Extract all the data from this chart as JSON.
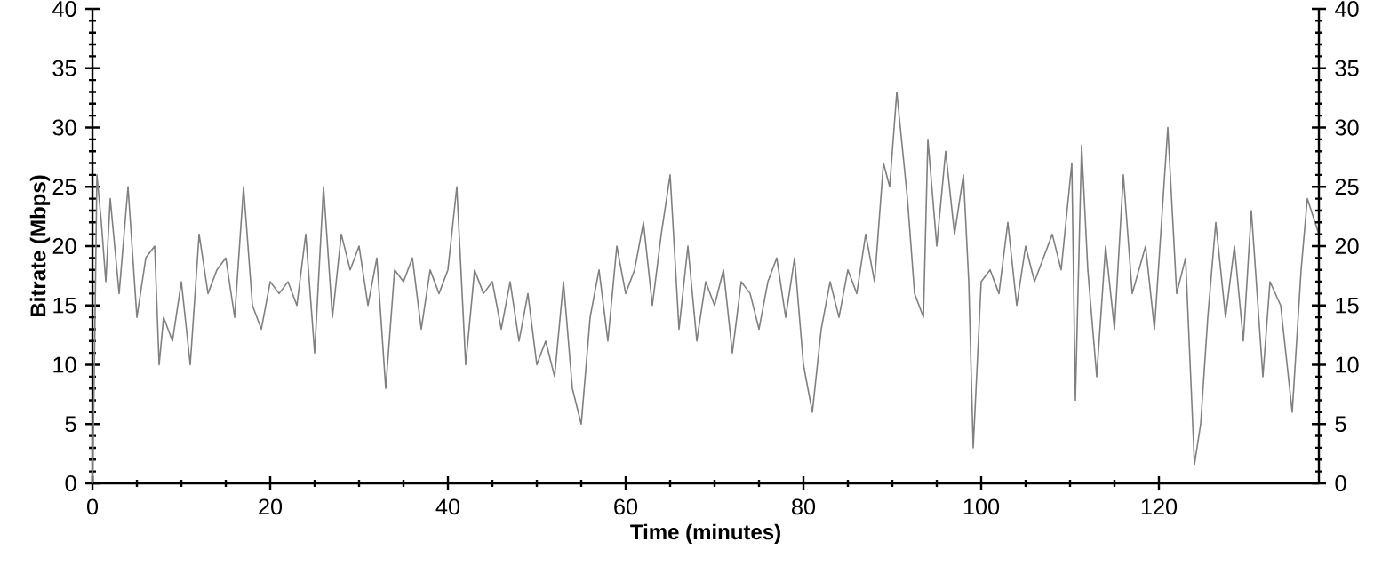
{
  "chart_data": {
    "type": "line",
    "xlabel": "Time (minutes)",
    "ylabel": "Bitrate (Mbps)",
    "xlim": [
      0,
      138
    ],
    "xticks": [
      0,
      20,
      40,
      60,
      80,
      100,
      120
    ],
    "ylim": [
      0,
      40
    ],
    "yticks": [
      0,
      5,
      10,
      15,
      20,
      25,
      30,
      35,
      40
    ],
    "y2lim": [
      0,
      40
    ],
    "y2ticks": [
      0,
      5,
      10,
      15,
      20,
      25,
      30,
      35,
      40
    ],
    "grid": false,
    "series": [
      {
        "color": "#808080",
        "x": [
          0,
          0.2,
          0.5,
          1,
          1.5,
          2,
          3,
          4,
          5,
          6,
          7,
          7.5,
          8,
          9,
          10,
          11,
          12,
          13,
          14,
          15,
          16,
          17,
          18,
          19,
          20,
          21,
          22,
          23,
          24,
          25,
          26,
          27,
          28,
          29,
          30,
          31,
          32,
          33,
          34,
          35,
          36,
          37,
          38,
          39,
          40,
          41,
          42,
          43,
          44,
          45,
          46,
          47,
          48,
          49,
          50,
          51,
          52,
          53,
          54,
          55,
          56,
          57,
          58,
          59,
          60,
          61,
          62,
          63,
          64,
          65,
          66,
          67,
          68,
          69,
          70,
          71,
          72,
          73,
          74,
          75,
          76,
          77,
          78,
          79,
          80,
          81,
          82,
          83,
          84,
          85,
          86,
          87,
          88,
          89,
          89.7,
          90.5,
          91.7,
          92.5,
          93.5,
          94,
          95,
          96,
          97,
          98,
          98.6,
          99.1,
          100,
          101,
          102,
          103,
          104,
          105,
          106,
          107,
          108,
          109,
          110.2,
          110.6,
          111.3,
          112,
          113,
          114,
          115,
          116,
          117,
          118.5,
          119.5,
          121,
          122,
          123,
          124,
          124.7,
          125.5,
          126.4,
          127.5,
          128.5,
          129.5,
          130.4,
          131.7,
          132.5,
          133.7,
          135,
          136,
          136.7,
          138
        ],
        "values": [
          0,
          9,
          26,
          22,
          17,
          24,
          16,
          25,
          14,
          19,
          20,
          10,
          14,
          12,
          17,
          10,
          21,
          16,
          18,
          19,
          14,
          25,
          15,
          13,
          17,
          16,
          17,
          15,
          21,
          11,
          25,
          14,
          21,
          18,
          20,
          15,
          19,
          8,
          18,
          17,
          19,
          13,
          18,
          16,
          18,
          25,
          10,
          18,
          16,
          17,
          13,
          17,
          12,
          16,
          10,
          12,
          9,
          17,
          8,
          5,
          14,
          18,
          12,
          20,
          16,
          18,
          22,
          15,
          21,
          26,
          13,
          20,
          12,
          17,
          15,
          18,
          11,
          17,
          16,
          13,
          17,
          19,
          14,
          19,
          10,
          6,
          13,
          17,
          14,
          18,
          16,
          21,
          17,
          27,
          25,
          33,
          24,
          16,
          14,
          29,
          20,
          28,
          21,
          26,
          17,
          3,
          17,
          18,
          16,
          22,
          15,
          20,
          17,
          19,
          21,
          18,
          27,
          7,
          28.5,
          18,
          9,
          20,
          13,
          26,
          16,
          20,
          13,
          30,
          16,
          19,
          1.6,
          5,
          14,
          22,
          14,
          20,
          12,
          23,
          9,
          17,
          15,
          6,
          18,
          24,
          21
        ]
      }
    ]
  }
}
